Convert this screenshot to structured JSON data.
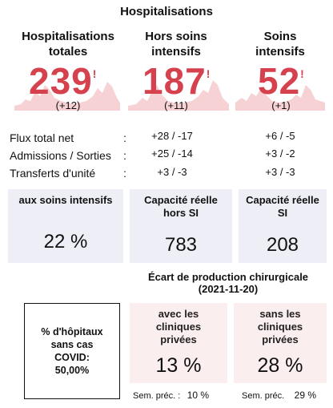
{
  "title": "Hospitalisations",
  "columns": [
    {
      "name": "col-total",
      "header_line1": "Hospitalisations",
      "header_line2": "totales",
      "value": "239",
      "delta": "(+12)",
      "alert": "!"
    },
    {
      "name": "col-hors-si",
      "header_line1": "Hors soins",
      "header_line2": "intensifs",
      "value": "187",
      "delta": "(+11)",
      "alert": "!"
    },
    {
      "name": "col-si",
      "header_line1": "Soins",
      "header_line2": "intensifs",
      "value": "52",
      "delta": "(+1)",
      "alert": "!"
    }
  ],
  "flux": {
    "rows": [
      {
        "label": "Flux total net",
        "hors_si": "+28 / -17",
        "si": "+6 / -5"
      },
      {
        "label": "Admissions / Sorties",
        "hors_si": "+25 / -14",
        "si": "+3 / -2"
      },
      {
        "label": "Transferts d'unité",
        "hors_si": "+3 / -3",
        "si": "+3 / -3"
      }
    ]
  },
  "capacity": {
    "si_box": {
      "label": "aux soins intensifs",
      "value": "22 %"
    },
    "hors_si_box": {
      "label_line1": "Capacité réelle",
      "label_line2": "hors SI",
      "value": "783"
    },
    "si_real_box": {
      "label_line1": "Capacité réelle",
      "label_line2": "SI",
      "value": "208"
    }
  },
  "ecart": {
    "line1": "Écart de production chirurgicale",
    "line2": "(2021-11-20)"
  },
  "covid": {
    "line1": "% d'hôpitaux",
    "line2": "sans cas",
    "line3": "COVID:",
    "line4": "50,00%"
  },
  "surgery": {
    "with_private": {
      "line1": "avec les",
      "line2": "cliniques",
      "line3": "privées",
      "value": "13 %",
      "prev_label": "Sem. préc. :",
      "prev_value": "10 %"
    },
    "without_private": {
      "line1": "sans les",
      "line2": "cliniques",
      "line3": "privées",
      "value": "28 %",
      "prev_label": "Sem. préc.",
      "prev_value": "29 %"
    }
  },
  "colors": {
    "accent_red": "#d6414e",
    "spark_fill": "#f6d2d4",
    "box_blue": "#eeeff6",
    "box_pink": "#fbeeee"
  }
}
